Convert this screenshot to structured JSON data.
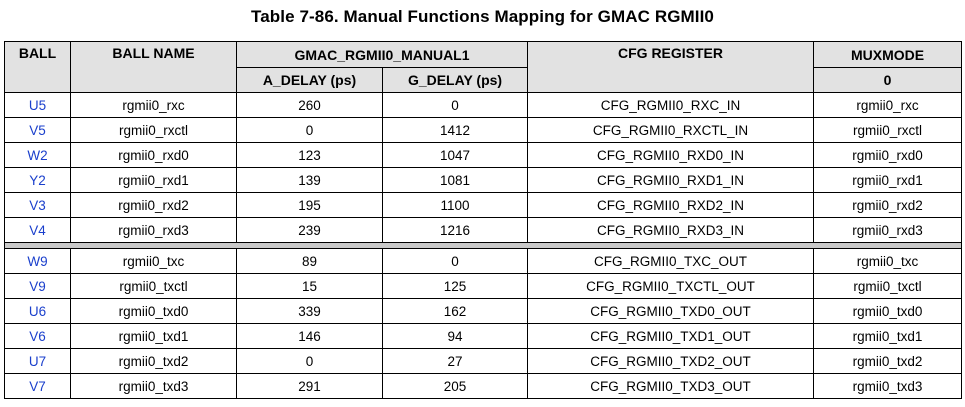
{
  "caption": "Table 7-86. Manual Functions Mapping for GMAC RGMII0",
  "headers": {
    "ball": "BALL",
    "ball_name": "BALL NAME",
    "group": "GMAC_RGMII0_MANUAL1",
    "a_delay": "A_DELAY (ps)",
    "g_delay": "G_DELAY (ps)",
    "cfg_register": "CFG REGISTER",
    "muxmode": "MUXMODE",
    "muxmode_sub": "0"
  },
  "rx_rows": [
    {
      "ball": "U5",
      "name": "rgmii0_rxc",
      "a": "260",
      "g": "0",
      "cfg": "CFG_RGMII0_RXC_IN",
      "mux": "rgmii0_rxc"
    },
    {
      "ball": "V5",
      "name": "rgmii0_rxctl",
      "a": "0",
      "g": "1412",
      "cfg": "CFG_RGMII0_RXCTL_IN",
      "mux": "rgmii0_rxctl"
    },
    {
      "ball": "W2",
      "name": "rgmii0_rxd0",
      "a": "123",
      "g": "1047",
      "cfg": "CFG_RGMII0_RXD0_IN",
      "mux": "rgmii0_rxd0"
    },
    {
      "ball": "Y2",
      "name": "rgmii0_rxd1",
      "a": "139",
      "g": "1081",
      "cfg": "CFG_RGMII0_RXD1_IN",
      "mux": "rgmii0_rxd1"
    },
    {
      "ball": "V3",
      "name": "rgmii0_rxd2",
      "a": "195",
      "g": "1100",
      "cfg": "CFG_RGMII0_RXD2_IN",
      "mux": "rgmii0_rxd2"
    },
    {
      "ball": "V4",
      "name": "rgmii0_rxd3",
      "a": "239",
      "g": "1216",
      "cfg": "CFG_RGMII0_RXD3_IN",
      "mux": "rgmii0_rxd3"
    }
  ],
  "tx_rows": [
    {
      "ball": "W9",
      "name": "rgmii0_txc",
      "a": "89",
      "g": "0",
      "cfg": "CFG_RGMII0_TXC_OUT",
      "mux": "rgmii0_txc"
    },
    {
      "ball": "V9",
      "name": "rgmii0_txctl",
      "a": "15",
      "g": "125",
      "cfg": "CFG_RGMII0_TXCTL_OUT",
      "mux": "rgmii0_txctl"
    },
    {
      "ball": "U6",
      "name": "rgmii0_txd0",
      "a": "339",
      "g": "162",
      "cfg": "CFG_RGMII0_TXD0_OUT",
      "mux": "rgmii0_txd0"
    },
    {
      "ball": "V6",
      "name": "rgmii0_txd1",
      "a": "146",
      "g": "94",
      "cfg": "CFG_RGMII0_TXD1_OUT",
      "mux": "rgmii0_txd1"
    },
    {
      "ball": "U7",
      "name": "rgmii0_txd2",
      "a": "0",
      "g": "27",
      "cfg": "CFG_RGMII0_TXD2_OUT",
      "mux": "rgmii0_txd2"
    },
    {
      "ball": "V7",
      "name": "rgmii0_txd3",
      "a": "291",
      "g": "205",
      "cfg": "CFG_RGMII0_TXD3_OUT",
      "mux": "rgmii0_txd3"
    }
  ]
}
